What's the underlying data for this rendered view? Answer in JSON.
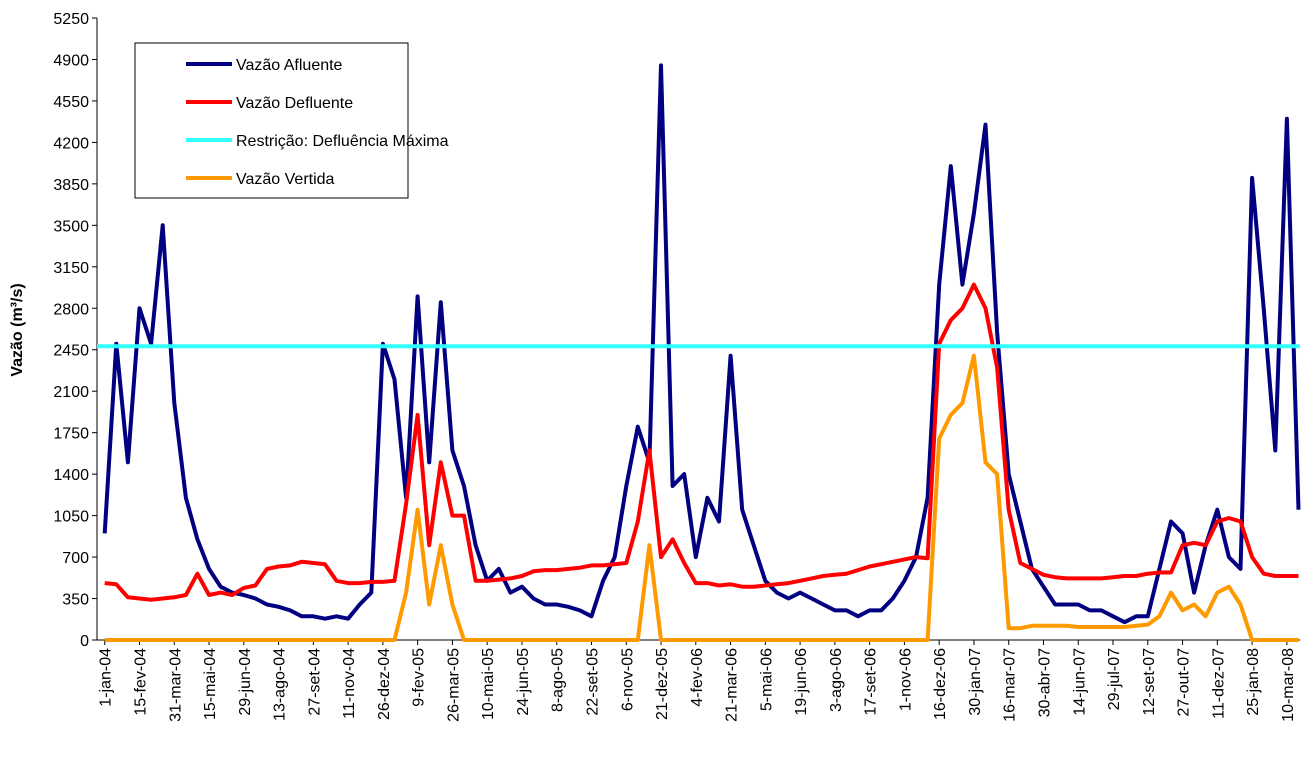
{
  "chart_data": {
    "type": "line",
    "y_label": "Vazão (m³/s)",
    "xlim": [
      -10,
      1547
    ],
    "xticks": [
      {
        "value": 0,
        "label": "1-jan-04"
      },
      {
        "value": 45,
        "label": "15-fev-04"
      },
      {
        "value": 90,
        "label": "31-mar-04"
      },
      {
        "value": 135,
        "label": "15-mai-04"
      },
      {
        "value": 180,
        "label": "29-jun-04"
      },
      {
        "value": 225,
        "label": "13-ago-04"
      },
      {
        "value": 270,
        "label": "27-set-04"
      },
      {
        "value": 315,
        "label": "11-nov-04"
      },
      {
        "value": 360,
        "label": "26-dez-04"
      },
      {
        "value": 405,
        "label": "9-fev-05"
      },
      {
        "value": 450,
        "label": "26-mar-05"
      },
      {
        "value": 495,
        "label": "10-mai-05"
      },
      {
        "value": 540,
        "label": "24-jun-05"
      },
      {
        "value": 585,
        "label": "8-ago-05"
      },
      {
        "value": 630,
        "label": "22-set-05"
      },
      {
        "value": 675,
        "label": "6-nov-05"
      },
      {
        "value": 720,
        "label": "21-dez-05"
      },
      {
        "value": 765,
        "label": "4-fev-06"
      },
      {
        "value": 810,
        "label": "21-mar-06"
      },
      {
        "value": 855,
        "label": "5-mai-06"
      },
      {
        "value": 900,
        "label": "19-jun-06"
      },
      {
        "value": 945,
        "label": "3-ago-06"
      },
      {
        "value": 990,
        "label": "17-set-06"
      },
      {
        "value": 1035,
        "label": "1-nov-06"
      },
      {
        "value": 1080,
        "label": "16-dez-06"
      },
      {
        "value": 1125,
        "label": "30-jan-07"
      },
      {
        "value": 1170,
        "label": "16-mar-07"
      },
      {
        "value": 1215,
        "label": "30-abr-07"
      },
      {
        "value": 1260,
        "label": "14-jun-07"
      },
      {
        "value": 1305,
        "label": "29-jul-07"
      },
      {
        "value": 1350,
        "label": "12-set-07"
      },
      {
        "value": 1395,
        "label": "27-out-07"
      },
      {
        "value": 1440,
        "label": "11-dez-07"
      },
      {
        "value": 1485,
        "label": "25-jan-08"
      },
      {
        "value": 1530,
        "label": "10-mar-08"
      }
    ],
    "ylim": [
      0,
      5250
    ],
    "yticks": [
      0,
      350,
      700,
      1050,
      1400,
      1750,
      2100,
      2450,
      2800,
      3150,
      3500,
      3850,
      4200,
      4550,
      4900,
      5250
    ],
    "x": [
      0,
      15,
      30,
      45,
      60,
      75,
      90,
      105,
      120,
      135,
      150,
      165,
      180,
      195,
      210,
      225,
      240,
      255,
      270,
      285,
      300,
      315,
      330,
      345,
      360,
      375,
      390,
      405,
      420,
      435,
      450,
      465,
      480,
      495,
      510,
      525,
      540,
      555,
      570,
      585,
      600,
      615,
      630,
      645,
      660,
      675,
      690,
      705,
      720,
      735,
      750,
      765,
      780,
      795,
      810,
      825,
      840,
      855,
      870,
      885,
      900,
      915,
      930,
      945,
      960,
      975,
      990,
      1005,
      1020,
      1035,
      1050,
      1065,
      1080,
      1095,
      1110,
      1125,
      1140,
      1155,
      1170,
      1185,
      1200,
      1215,
      1230,
      1245,
      1260,
      1275,
      1290,
      1305,
      1320,
      1335,
      1350,
      1365,
      1380,
      1395,
      1410,
      1425,
      1440,
      1455,
      1470,
      1485,
      1500,
      1515,
      1530,
      1545
    ],
    "series": [
      {
        "name": "Vazão Afluente",
        "color": "#000080",
        "values": [
          900,
          2500,
          1500,
          2800,
          2500,
          3500,
          2000,
          1200,
          850,
          600,
          450,
          400,
          380,
          350,
          300,
          280,
          250,
          200,
          200,
          180,
          200,
          180,
          300,
          400,
          2500,
          2200,
          1200,
          2900,
          1500,
          2850,
          1600,
          1300,
          800,
          500,
          600,
          400,
          450,
          350,
          300,
          300,
          280,
          250,
          200,
          500,
          700,
          1300,
          1800,
          1500,
          4850,
          1300,
          1400,
          700,
          1200,
          1000,
          2400,
          1100,
          800,
          500,
          400,
          350,
          400,
          350,
          300,
          250,
          250,
          200,
          250,
          250,
          350,
          500,
          700,
          1200,
          3000,
          4000,
          3000,
          3600,
          4350,
          2600,
          1400,
          1000,
          600,
          450,
          300,
          300,
          300,
          250,
          250,
          200,
          150,
          200,
          200,
          600,
          1000,
          900,
          400,
          800,
          1100,
          700,
          600,
          3900,
          2800,
          1600,
          4400,
          1100
        ]
      },
      {
        "name": "Vazão Defluente",
        "color": "#ff0000",
        "values": [
          480,
          470,
          360,
          350,
          340,
          350,
          360,
          380,
          560,
          380,
          400,
          380,
          440,
          460,
          600,
          620,
          630,
          660,
          650,
          640,
          500,
          480,
          480,
          490,
          490,
          500,
          1150,
          1900,
          800,
          1500,
          1050,
          1050,
          500,
          500,
          510,
          520,
          540,
          580,
          590,
          590,
          600,
          610,
          630,
          630,
          640,
          650,
          1000,
          1600,
          700,
          850,
          650,
          480,
          480,
          460,
          470,
          450,
          450,
          460,
          470,
          480,
          500,
          520,
          540,
          550,
          560,
          590,
          620,
          640,
          660,
          680,
          700,
          690,
          2500,
          2700,
          2800,
          3000,
          2800,
          2300,
          1100,
          650,
          600,
          550,
          530,
          520,
          520,
          520,
          520,
          530,
          540,
          540,
          560,
          570,
          570,
          800,
          820,
          800,
          1000,
          1030,
          1000,
          700,
          560,
          540,
          540,
          540
        ]
      },
      {
        "name": "Restrição: Defluência Máxima",
        "color": "#33ffff",
        "x": [
          -10,
          1547
        ],
        "values": [
          2480,
          2480
        ]
      },
      {
        "name": "Vazão Vertida",
        "color": "#ff9900",
        "values": [
          0,
          0,
          0,
          0,
          0,
          0,
          0,
          0,
          0,
          0,
          0,
          0,
          0,
          0,
          0,
          0,
          0,
          0,
          0,
          0,
          0,
          0,
          0,
          0,
          0,
          0,
          400,
          1100,
          300,
          800,
          300,
          0,
          0,
          0,
          0,
          0,
          0,
          0,
          0,
          0,
          0,
          0,
          0,
          0,
          0,
          0,
          0,
          800,
          0,
          0,
          0,
          0,
          0,
          0,
          0,
          0,
          0,
          0,
          0,
          0,
          0,
          0,
          0,
          0,
          0,
          0,
          0,
          0,
          0,
          0,
          0,
          0,
          1700,
          1900,
          2000,
          2400,
          1500,
          1400,
          100,
          100,
          120,
          120,
          120,
          120,
          110,
          110,
          110,
          110,
          110,
          120,
          130,
          200,
          400,
          250,
          300,
          200,
          400,
          450,
          300,
          0,
          0,
          0,
          0,
          0
        ]
      }
    ]
  }
}
